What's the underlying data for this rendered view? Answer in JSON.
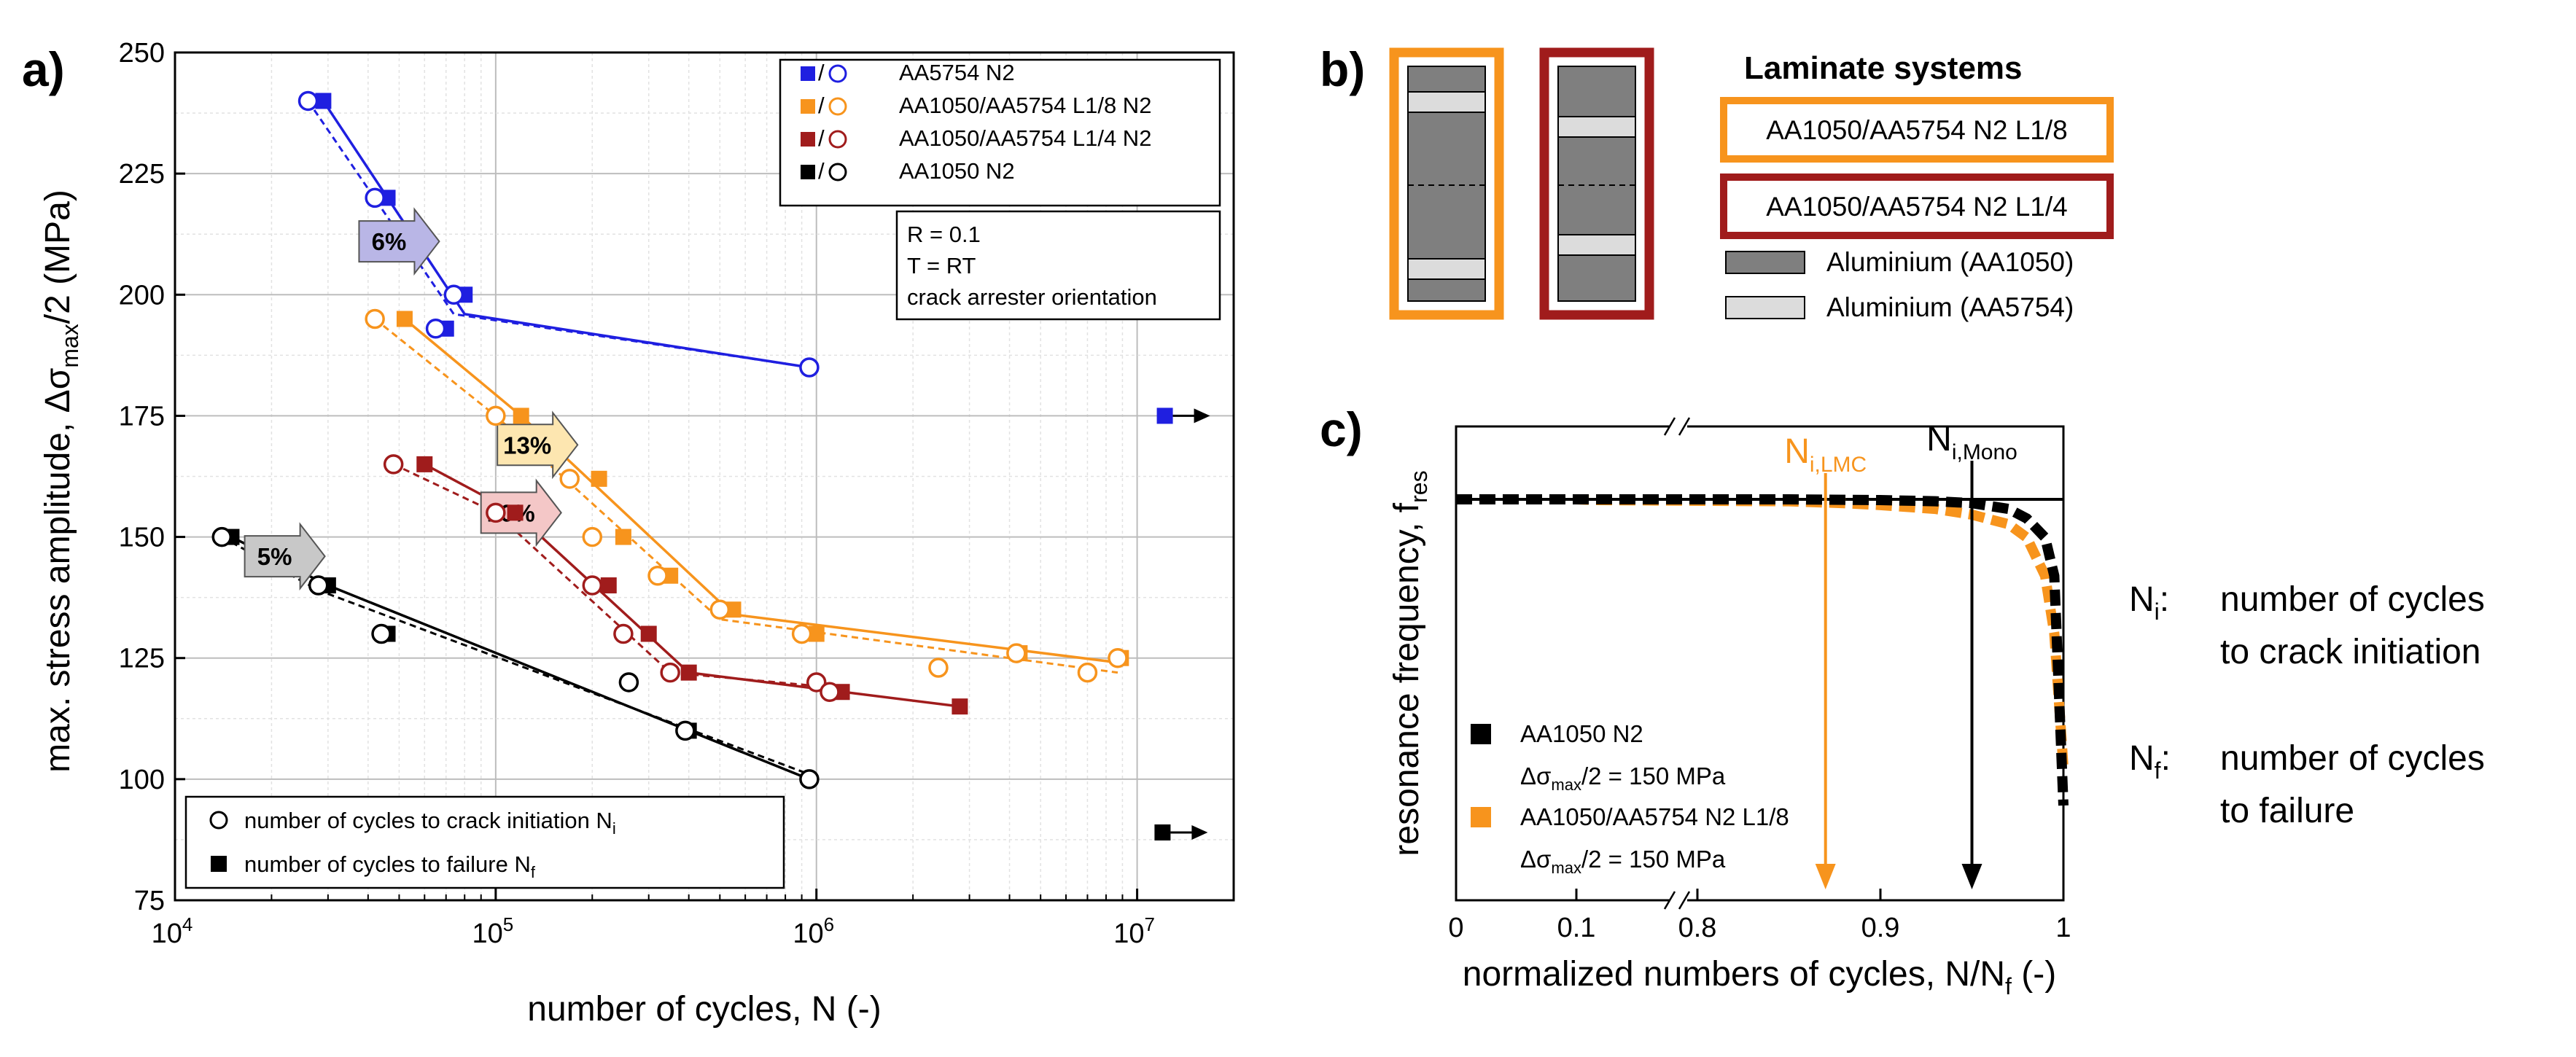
{
  "panels": {
    "a": "a)",
    "b": "b)",
    "c": "c)"
  },
  "colors": {
    "aa5754": "#1f1fe0",
    "l18": "#f7941d",
    "l14": "#a01c1c",
    "aa1050": "#000000",
    "lam_border_l18": "#f7941d",
    "lam_border_l14": "#a01c1c",
    "dark_layer": "#7f7f7f",
    "light_layer": "#dcdcdc",
    "arrow_6": "#b9b6e6",
    "arrow_13": "#fde6b0",
    "arrow_10": "#f4c7c7",
    "arrow_5": "#c8c8c8"
  },
  "chart_data": [
    {
      "type": "scatter",
      "panel": "a",
      "ylabel": "max. stress amplitude, Δσmax/2 (MPa)",
      "ylabel_parts": {
        "pre": "max. stress amplitude, Δσ",
        "sub": "max",
        "post": "/2 (MPa)"
      },
      "xlabel": "number of cycles, N (-)",
      "x_scale": "log",
      "xlim": [
        10000,
        20000000
      ],
      "ylim": [
        75,
        250
      ],
      "grid": true,
      "x_ticks": [
        {
          "value": 10000,
          "base": "10",
          "exp": "4"
        },
        {
          "value": 100000,
          "base": "10",
          "exp": "5"
        },
        {
          "value": 1000000,
          "base": "10",
          "exp": "6"
        },
        {
          "value": 10000000,
          "base": "10",
          "exp": "7"
        }
      ],
      "y_ticks": [
        "75",
        "100",
        "125",
        "150",
        "175",
        "200",
        "225",
        "250"
      ],
      "legend_position": "top-right",
      "legend": [
        {
          "symbol": "■/○",
          "label": "AA5754 N2",
          "color": "#1f1fe0"
        },
        {
          "symbol": "■/○",
          "label": "AA1050/AA5754 L1/8 N2",
          "color": "#f7941d"
        },
        {
          "symbol": "■/○",
          "label": "AA1050/AA5754 L1/4 N2",
          "color": "#a01c1c"
        },
        {
          "symbol": "■/○",
          "label": "AA1050 N2",
          "color": "#000000"
        }
      ],
      "conditions": [
        "R = 0.1",
        "T = RT",
        "crack arrester orientation"
      ],
      "marker_legend": [
        {
          "marker": "open-circle",
          "label": "number of cycles to crack initiation N",
          "sub": "i"
        },
        {
          "marker": "filled-square",
          "label": "number of cycles to failure N",
          "sub": "f"
        }
      ],
      "annotations": [
        {
          "text": "6%",
          "x": 50000,
          "y": 211,
          "color": "#b9b6e6"
        },
        {
          "text": "13%",
          "x": 135000,
          "y": 169,
          "color": "#fde6b0"
        },
        {
          "text": "10%",
          "x": 120000,
          "y": 155,
          "color": "#f4c7c7"
        },
        {
          "text": "5%",
          "x": 22000,
          "y": 146,
          "color": "#c8c8c8"
        }
      ],
      "series": [
        {
          "name": "AA5754 N2",
          "color": "#1f1fe0",
          "initiation": [
            [
              26000,
              240
            ],
            [
              42000,
              220
            ],
            [
              65000,
              193
            ],
            [
              74000,
              200
            ],
            [
              950000,
              185
            ]
          ],
          "failure": [
            [
              29000,
              240
            ],
            [
              46000,
              220
            ],
            [
              70000,
              193
            ],
            [
              80000,
              200
            ]
          ],
          "fit_initiation": [
            [
              26000,
              240
            ],
            [
              74000,
              196
            ],
            [
              950000,
              185
            ]
          ],
          "fit_failure": [
            [
              29000,
              240
            ],
            [
              80000,
              196
            ],
            [
              950000,
              185
            ]
          ],
          "runout": [
            {
              "x": 12200000,
              "y": 175
            }
          ]
        },
        {
          "name": "AA1050/AA5754 L1/8 N2",
          "color": "#f7941d",
          "initiation": [
            [
              42000,
              195
            ],
            [
              100000,
              175
            ],
            [
              170000,
              162
            ],
            [
              200000,
              150
            ],
            [
              320000,
              142
            ],
            [
              500000,
              135
            ],
            [
              900000,
              130
            ],
            [
              2400000,
              123
            ],
            [
              4200000,
              126
            ],
            [
              7000000,
              122
            ],
            [
              8700000,
              125
            ]
          ],
          "failure": [
            [
              52000,
              195
            ],
            [
              120000,
              175
            ],
            [
              210000,
              162
            ],
            [
              250000,
              150
            ],
            [
              350000,
              142
            ],
            [
              550000,
              135
            ],
            [
              1000000,
              130
            ],
            [
              4300000,
              126
            ],
            [
              8900000,
              125
            ]
          ],
          "fit_initiation": [
            [
              42000,
              195
            ],
            [
              100000,
              175
            ],
            [
              500000,
              133
            ],
            [
              8700000,
              122
            ]
          ],
          "fit_failure": [
            [
              52000,
              195
            ],
            [
              120000,
              175
            ],
            [
              550000,
              134
            ],
            [
              8900000,
              124
            ]
          ]
        },
        {
          "name": "AA1050/AA5754 L1/4 N2",
          "color": "#a01c1c",
          "initiation": [
            [
              48000,
              165
            ],
            [
              100000,
              155
            ],
            [
              200000,
              140
            ],
            [
              250000,
              130
            ],
            [
              350000,
              122
            ],
            [
              1000000,
              120
            ],
            [
              1100000,
              118
            ]
          ],
          "failure": [
            [
              60000,
              165
            ],
            [
              115000,
              155
            ],
            [
              225000,
              140
            ],
            [
              300000,
              130
            ],
            [
              400000,
              122
            ],
            [
              1200000,
              118
            ],
            [
              2800000,
              115
            ]
          ],
          "fit_initiation": [
            [
              48000,
              165
            ],
            [
              100000,
              155
            ],
            [
              350000,
              122
            ],
            [
              1100000,
              119
            ]
          ],
          "fit_failure": [
            [
              60000,
              165
            ],
            [
              115000,
              155
            ],
            [
              400000,
              122
            ],
            [
              2800000,
              115
            ]
          ]
        },
        {
          "name": "AA1050 N2",
          "color": "#000000",
          "initiation": [
            [
              14000,
              150
            ],
            [
              28000,
              140
            ],
            [
              44000,
              130
            ],
            [
              260000,
              120
            ],
            [
              390000,
              110
            ],
            [
              950000,
              100
            ]
          ],
          "failure": [
            [
              15000,
              150
            ],
            [
              30000,
              140
            ],
            [
              46000,
              130
            ],
            [
              400000,
              110
            ]
          ],
          "fit_initiation": [
            [
              14000,
              150
            ],
            [
              28000,
              139
            ],
            [
              950000,
              101
            ]
          ],
          "fit_failure": [
            [
              15000,
              150
            ],
            [
              30000,
              140
            ],
            [
              950000,
              100
            ]
          ],
          "runout": [
            {
              "x": 12000000,
              "y": 89
            }
          ]
        }
      ]
    },
    {
      "type": "line",
      "panel": "c",
      "ylabel": "resonance frequency, fres",
      "ylabel_parts": {
        "pre": "resonance frequency, f",
        "sub": "res"
      },
      "xlabel": "normalized numbers of cycles, N/Nf (-)",
      "xlabel_parts": {
        "pre": "normalized numbers of cycles, N/N",
        "sub": "f",
        "post": " (-)"
      },
      "x_scale": "broken",
      "xlim": [
        0,
        1
      ],
      "x_ticks": [
        "0",
        "0.1",
        "0.8",
        "0.9",
        "1"
      ],
      "y_ticks": [],
      "series": [
        {
          "name": "AA1050 N2",
          "color": "#000000",
          "x": [
            0,
            0.1,
            0.8,
            0.85,
            0.9,
            0.93,
            0.95,
            0.97,
            0.98,
            0.99,
            0.995,
            1.0
          ],
          "y": [
            1.0,
            1.0,
            1.0,
            1.0,
            0.998,
            0.995,
            0.99,
            0.975,
            0.95,
            0.9,
            0.8,
            0.2
          ]
        },
        {
          "name": "AA1050/AA5754 N2 L1/8",
          "color": "#f7941d",
          "x": [
            0,
            0.1,
            0.8,
            0.85,
            0.88,
            0.9,
            0.93,
            0.95,
            0.97,
            0.98,
            0.99,
            0.995,
            1.0
          ],
          "y": [
            1.0,
            1.0,
            0.998,
            0.995,
            0.99,
            0.985,
            0.975,
            0.96,
            0.935,
            0.9,
            0.8,
            0.65,
            0.3
          ]
        }
      ],
      "reference_line": 1.0,
      "markers": [
        {
          "label": "N",
          "sub": "i,LMC",
          "x": 0.87,
          "color": "#f7941d"
        },
        {
          "label": "N",
          "sub": "i,Mono",
          "x": 0.95,
          "color": "#000000"
        }
      ],
      "legend": [
        {
          "label": "AA1050 N2",
          "stress": {
            "pre": "Δσ",
            "sub": "max",
            "post": "/2 = 150 MPa"
          },
          "color": "#000000"
        },
        {
          "label": "AA1050/AA5754 N2 L1/8",
          "stress": {
            "pre": "Δσ",
            "sub": "max",
            "post": "/2 = 150 MPa"
          },
          "color": "#f7941d"
        }
      ]
    }
  ],
  "laminate": {
    "title": "Laminate systems",
    "systems": [
      {
        "label": "AA1050/AA5754 N2 L1/8",
        "border": "#f7941d"
      },
      {
        "label": "AA1050/AA5754 N2 L1/4",
        "border": "#a01c1c"
      }
    ],
    "materials": [
      {
        "label": "Aluminium (AA1050)",
        "fill": "#7f7f7f"
      },
      {
        "label": "Aluminium (AA5754)",
        "fill": "#dcdcdc"
      }
    ]
  },
  "definitions": [
    {
      "symbol": "N",
      "sub": "i",
      "colon": ":",
      "lines": [
        "number of cycles",
        "to crack initiation"
      ]
    },
    {
      "symbol": "N",
      "sub": "f",
      "colon": ":",
      "lines": [
        "number of cycles",
        "to failure"
      ]
    }
  ]
}
